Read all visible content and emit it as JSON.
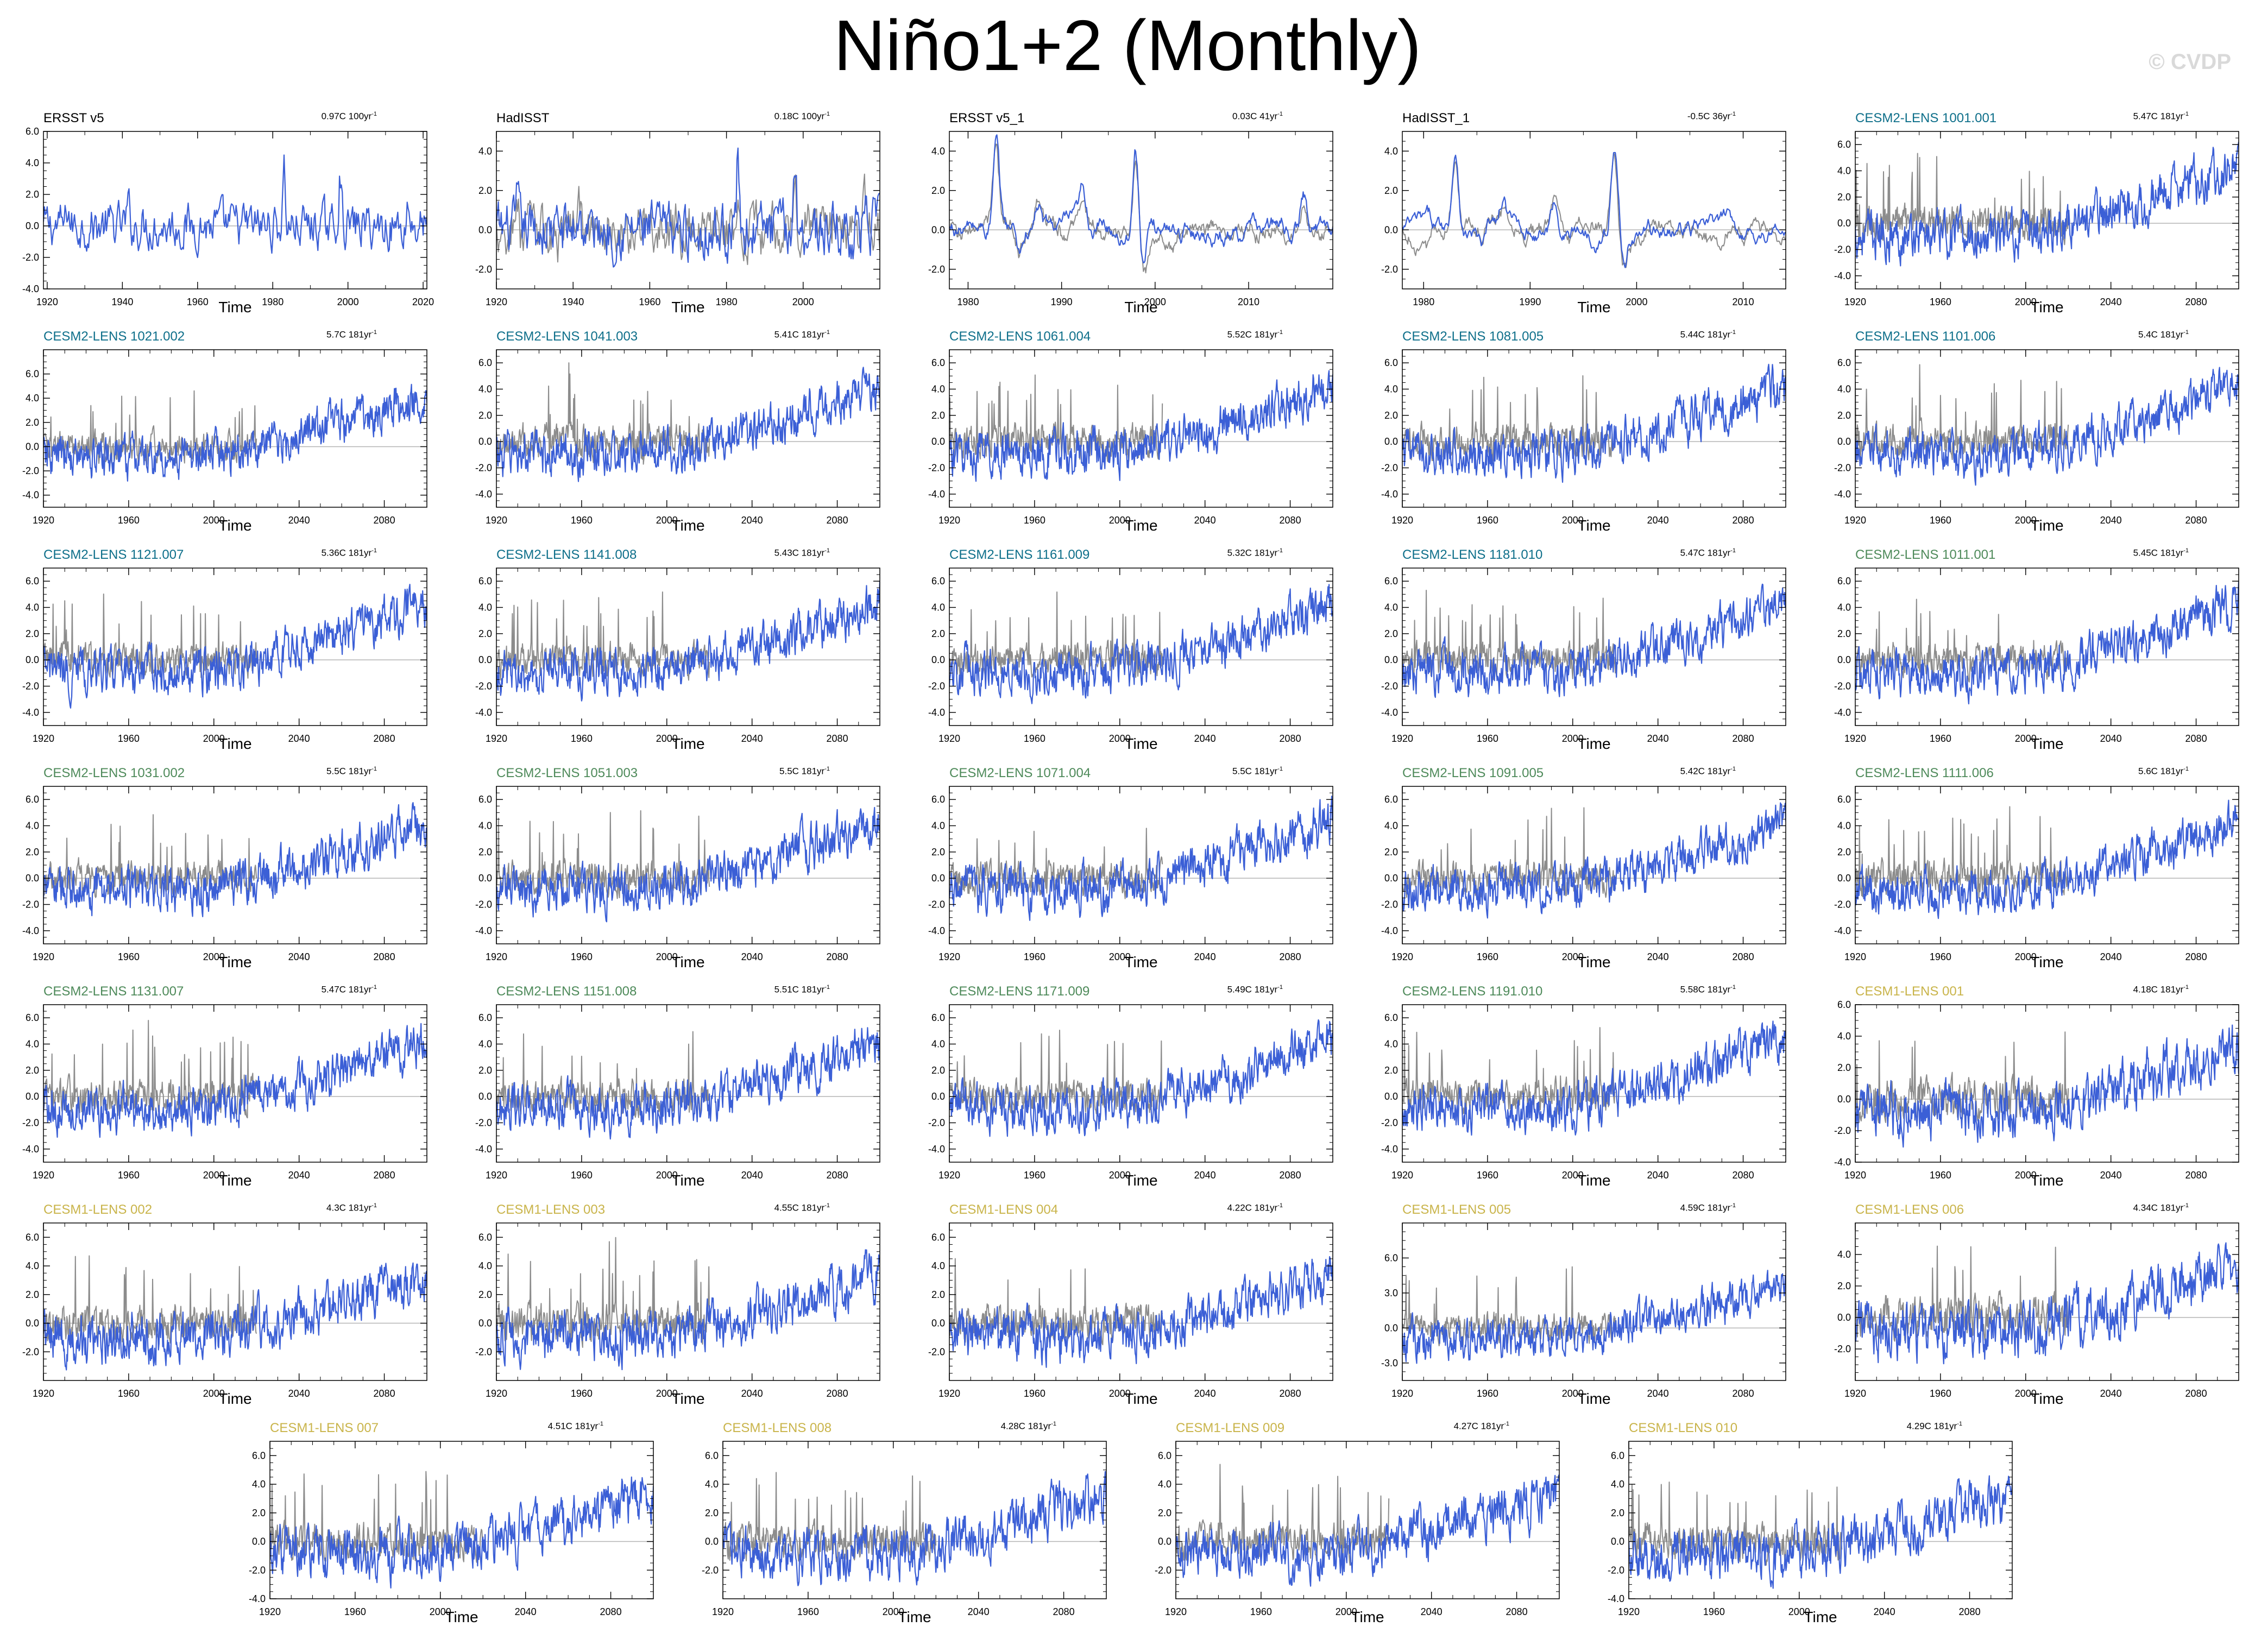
{
  "page": {
    "title": "Niño1+2 (Monthly)",
    "watermark": "© CVDP"
  },
  "colors": {
    "series": "#3b5fd6",
    "reference": "#8c8c8c",
    "zero_line": "#b4b4b4",
    "frame": "#000000",
    "name_obs": "#000000",
    "name_cesm2_a": "#0e6f8a",
    "name_cesm2_b": "#4e8a5a",
    "name_cesm1": "#c9b44a"
  },
  "x_axis_label": "Time",
  "panels": [
    {
      "name": "ERSST v5",
      "name_color": "#000000",
      "trend": "0.97C 100yr",
      "trend_exp": "-1",
      "xlim": [
        1919,
        2021
      ],
      "xticks": [
        1920,
        1940,
        1960,
        1980,
        2000,
        2020
      ],
      "ylim": [
        -4,
        6
      ],
      "yticks": [
        "6.0",
        "4.0",
        "2.0",
        "0.0",
        "-2.0",
        "-4.0"
      ],
      "kind": "obs_long",
      "has_reference": false
    },
    {
      "name": "HadISST",
      "name_color": "#000000",
      "trend": "0.18C 100yr",
      "trend_exp": "-1",
      "xlim": [
        1920,
        2020
      ],
      "xticks": [
        1920,
        1940,
        1960,
        1980,
        2000
      ],
      "ylim": [
        -3,
        5
      ],
      "yticks": [
        "4.0",
        "2.0",
        "0.0",
        "-2.0"
      ],
      "kind": "obs_long",
      "has_reference": true
    },
    {
      "name": "ERSST v5_1",
      "name_color": "#000000",
      "trend": "0.03C 41yr",
      "trend_exp": "-1",
      "xlim": [
        1978,
        2019
      ],
      "xticks": [
        1980,
        1990,
        2000,
        2010
      ],
      "ylim": [
        -3,
        5
      ],
      "yticks": [
        "4.0",
        "2.0",
        "0.0",
        "-2.0"
      ],
      "kind": "obs_short",
      "has_reference": true
    },
    {
      "name": "HadISST_1",
      "name_color": "#000000",
      "trend": "-0.5C 36yr",
      "trend_exp": "-1",
      "xlim": [
        1978,
        2014
      ],
      "xticks": [
        1980,
        1990,
        2000,
        2010
      ],
      "ylim": [
        -3,
        5
      ],
      "yticks": [
        "4.0",
        "2.0",
        "0.0",
        "-2.0"
      ],
      "kind": "obs_short",
      "has_reference": true
    },
    {
      "name": "CESM2-LENS 1001.001",
      "name_color": "#0e6f8a",
      "trend": "5.47C 181yr",
      "trend_exp": "-1",
      "xlim": [
        1920,
        2100
      ],
      "xticks": [
        1920,
        1960,
        2000,
        2040,
        2080
      ],
      "ylim": [
        -5,
        7
      ],
      "yticks": [
        "6.0",
        "4.0",
        "2.0",
        "0.0",
        "-2.0",
        "-4.0"
      ],
      "kind": "model",
      "has_reference": true,
      "end_level": 4.5
    },
    {
      "name": "CESM2-LENS 1021.002",
      "name_color": "#0e6f8a",
      "trend": "5.7C 181yr",
      "trend_exp": "-1",
      "xlim": [
        1920,
        2100
      ],
      "xticks": [
        1920,
        1960,
        2000,
        2040,
        2080
      ],
      "ylim": [
        -5,
        8
      ],
      "yticks": [
        "6.0",
        "4.0",
        "2.0",
        "0.0",
        "-2.0",
        "-4.0"
      ],
      "kind": "model",
      "has_reference": true,
      "end_level": 4.5
    },
    {
      "name": "CESM2-LENS 1041.003",
      "name_color": "#0e6f8a",
      "trend": "5.41C 181yr",
      "trend_exp": "-1",
      "xlim": [
        1920,
        2100
      ],
      "xticks": [
        1920,
        1960,
        2000,
        2040,
        2080
      ],
      "ylim": [
        -5,
        7
      ],
      "yticks": [
        "6.0",
        "4.0",
        "2.0",
        "0.0",
        "-2.0",
        "-4.0"
      ],
      "kind": "model",
      "has_reference": true,
      "end_level": 4.3
    },
    {
      "name": "CESM2-LENS 1061.004",
      "name_color": "#0e6f8a",
      "trend": "5.52C 181yr",
      "trend_exp": "-1",
      "xlim": [
        1920,
        2100
      ],
      "xticks": [
        1920,
        1960,
        2000,
        2040,
        2080
      ],
      "ylim": [
        -5,
        7
      ],
      "yticks": [
        "6.0",
        "4.0",
        "2.0",
        "0.0",
        "-2.0",
        "-4.0"
      ],
      "kind": "model",
      "has_reference": true,
      "end_level": 4.3
    },
    {
      "name": "CESM2-LENS 1081.005",
      "name_color": "#0e6f8a",
      "trend": "5.44C 181yr",
      "trend_exp": "-1",
      "xlim": [
        1920,
        2100
      ],
      "xticks": [
        1920,
        1960,
        2000,
        2040,
        2080
      ],
      "ylim": [
        -5,
        7
      ],
      "yticks": [
        "6.0",
        "4.0",
        "2.0",
        "0.0",
        "-2.0",
        "-4.0"
      ],
      "kind": "model",
      "has_reference": true,
      "end_level": 4.3
    },
    {
      "name": "CESM2-LENS 1101.006",
      "name_color": "#0e6f8a",
      "trend": "5.4C 181yr",
      "trend_exp": "-1",
      "xlim": [
        1920,
        2100
      ],
      "xticks": [
        1920,
        1960,
        2000,
        2040,
        2080
      ],
      "ylim": [
        -5,
        7
      ],
      "yticks": [
        "6.0",
        "4.0",
        "2.0",
        "0.0",
        "-2.0",
        "-4.0"
      ],
      "kind": "model",
      "has_reference": true,
      "end_level": 4.3
    },
    {
      "name": "CESM2-LENS 1121.007",
      "name_color": "#0e6f8a",
      "trend": "5.36C 181yr",
      "trend_exp": "-1",
      "xlim": [
        1920,
        2100
      ],
      "xticks": [
        1920,
        1960,
        2000,
        2040,
        2080
      ],
      "ylim": [
        -5,
        7
      ],
      "yticks": [
        "6.0",
        "4.0",
        "2.0",
        "0.0",
        "-2.0",
        "-4.0"
      ],
      "kind": "model",
      "has_reference": true,
      "end_level": 4.3
    },
    {
      "name": "CESM2-LENS 1141.008",
      "name_color": "#0e6f8a",
      "trend": "5.43C 181yr",
      "trend_exp": "-1",
      "xlim": [
        1920,
        2100
      ],
      "xticks": [
        1920,
        1960,
        2000,
        2040,
        2080
      ],
      "ylim": [
        -5,
        7
      ],
      "yticks": [
        "6.0",
        "4.0",
        "2.0",
        "0.0",
        "-2.0",
        "-4.0"
      ],
      "kind": "model",
      "has_reference": true,
      "end_level": 4.3
    },
    {
      "name": "CESM2-LENS 1161.009",
      "name_color": "#0e6f8a",
      "trend": "5.32C 181yr",
      "trend_exp": "-1",
      "xlim": [
        1920,
        2100
      ],
      "xticks": [
        1920,
        1960,
        2000,
        2040,
        2080
      ],
      "ylim": [
        -5,
        7
      ],
      "yticks": [
        "6.0",
        "4.0",
        "2.0",
        "0.0",
        "-2.0",
        "-4.0"
      ],
      "kind": "model",
      "has_reference": true,
      "end_level": 4.2
    },
    {
      "name": "CESM2-LENS 1181.010",
      "name_color": "#0e6f8a",
      "trend": "5.47C 181yr",
      "trend_exp": "-1",
      "xlim": [
        1920,
        2100
      ],
      "xticks": [
        1920,
        1960,
        2000,
        2040,
        2080
      ],
      "ylim": [
        -5,
        7
      ],
      "yticks": [
        "6.0",
        "4.0",
        "2.0",
        "0.0",
        "-2.0",
        "-4.0"
      ],
      "kind": "model",
      "has_reference": true,
      "end_level": 4.3
    },
    {
      "name": "CESM2-LENS 1011.001",
      "name_color": "#4e8a5a",
      "trend": "5.45C 181yr",
      "trend_exp": "-1",
      "xlim": [
        1920,
        2100
      ],
      "xticks": [
        1920,
        1960,
        2000,
        2040,
        2080
      ],
      "ylim": [
        -5,
        7
      ],
      "yticks": [
        "6.0",
        "4.0",
        "2.0",
        "0.0",
        "-2.0",
        "-4.0"
      ],
      "kind": "model",
      "has_reference": true,
      "end_level": 4.3
    },
    {
      "name": "CESM2-LENS 1031.002",
      "name_color": "#4e8a5a",
      "trend": "5.5C 181yr",
      "trend_exp": "-1",
      "xlim": [
        1920,
        2100
      ],
      "xticks": [
        1920,
        1960,
        2000,
        2040,
        2080
      ],
      "ylim": [
        -5,
        7
      ],
      "yticks": [
        "6.0",
        "4.0",
        "2.0",
        "0.0",
        "-2.0",
        "-4.0"
      ],
      "kind": "model",
      "has_reference": true,
      "end_level": 4.3
    },
    {
      "name": "CESM2-LENS 1051.003",
      "name_color": "#4e8a5a",
      "trend": "5.5C 181yr",
      "trend_exp": "-1",
      "xlim": [
        1920,
        2100
      ],
      "xticks": [
        1920,
        1960,
        2000,
        2040,
        2080
      ],
      "ylim": [
        -5,
        7
      ],
      "yticks": [
        "6.0",
        "4.0",
        "2.0",
        "0.0",
        "-2.0",
        "-4.0"
      ],
      "kind": "model",
      "has_reference": true,
      "end_level": 4.3
    },
    {
      "name": "CESM2-LENS 1071.004",
      "name_color": "#4e8a5a",
      "trend": "5.5C 181yr",
      "trend_exp": "-1",
      "xlim": [
        1920,
        2100
      ],
      "xticks": [
        1920,
        1960,
        2000,
        2040,
        2080
      ],
      "ylim": [
        -5,
        7
      ],
      "yticks": [
        "6.0",
        "4.0",
        "2.0",
        "0.0",
        "-2.0",
        "-4.0"
      ],
      "kind": "model",
      "has_reference": true,
      "end_level": 4.4
    },
    {
      "name": "CESM2-LENS 1091.005",
      "name_color": "#4e8a5a",
      "trend": "5.42C 181yr",
      "trend_exp": "-1",
      "xlim": [
        1920,
        2100
      ],
      "xticks": [
        1920,
        1960,
        2000,
        2040,
        2080
      ],
      "ylim": [
        -5,
        7
      ],
      "yticks": [
        "6.0",
        "4.0",
        "2.0",
        "0.0",
        "-2.0",
        "-4.0"
      ],
      "kind": "model",
      "has_reference": true,
      "end_level": 4.3
    },
    {
      "name": "CESM2-LENS 1111.006",
      "name_color": "#4e8a5a",
      "trend": "5.6C 181yr",
      "trend_exp": "-1",
      "xlim": [
        1920,
        2100
      ],
      "xticks": [
        1920,
        1960,
        2000,
        2040,
        2080
      ],
      "ylim": [
        -5,
        7
      ],
      "yticks": [
        "6.0",
        "4.0",
        "2.0",
        "0.0",
        "-2.0",
        "-4.0"
      ],
      "kind": "model",
      "has_reference": true,
      "end_level": 4.4
    },
    {
      "name": "CESM2-LENS 1131.007",
      "name_color": "#4e8a5a",
      "trend": "5.47C 181yr",
      "trend_exp": "-1",
      "xlim": [
        1920,
        2100
      ],
      "xticks": [
        1920,
        1960,
        2000,
        2040,
        2080
      ],
      "ylim": [
        -5,
        7
      ],
      "yticks": [
        "6.0",
        "4.0",
        "2.0",
        "0.0",
        "-2.0",
        "-4.0"
      ],
      "kind": "model",
      "has_reference": true,
      "end_level": 4.3
    },
    {
      "name": "CESM2-LENS 1151.008",
      "name_color": "#4e8a5a",
      "trend": "5.51C 181yr",
      "trend_exp": "-1",
      "xlim": [
        1920,
        2100
      ],
      "xticks": [
        1920,
        1960,
        2000,
        2040,
        2080
      ],
      "ylim": [
        -5,
        7
      ],
      "yticks": [
        "6.0",
        "4.0",
        "2.0",
        "0.0",
        "-2.0",
        "-4.0"
      ],
      "kind": "model",
      "has_reference": true,
      "end_level": 4.3
    },
    {
      "name": "CESM2-LENS 1171.009",
      "name_color": "#4e8a5a",
      "trend": "5.49C 181yr",
      "trend_exp": "-1",
      "xlim": [
        1920,
        2100
      ],
      "xticks": [
        1920,
        1960,
        2000,
        2040,
        2080
      ],
      "ylim": [
        -5,
        7
      ],
      "yticks": [
        "6.0",
        "4.0",
        "2.0",
        "0.0",
        "-2.0",
        "-4.0"
      ],
      "kind": "model",
      "has_reference": true,
      "end_level": 4.3
    },
    {
      "name": "CESM2-LENS 1191.010",
      "name_color": "#4e8a5a",
      "trend": "5.58C 181yr",
      "trend_exp": "-1",
      "xlim": [
        1920,
        2100
      ],
      "xticks": [
        1920,
        1960,
        2000,
        2040,
        2080
      ],
      "ylim": [
        -5,
        7
      ],
      "yticks": [
        "6.0",
        "4.0",
        "2.0",
        "0.0",
        "-2.0",
        "-4.0"
      ],
      "kind": "model",
      "has_reference": true,
      "end_level": 4.4
    },
    {
      "name": "CESM1-LENS 001",
      "name_color": "#c9b44a",
      "trend": "4.18C 181yr",
      "trend_exp": "-1",
      "xlim": [
        1920,
        2100
      ],
      "xticks": [
        1920,
        1960,
        2000,
        2040,
        2080
      ],
      "ylim": [
        -4,
        6
      ],
      "yticks": [
        "6.0",
        "4.0",
        "2.0",
        "0.0",
        "-2.0",
        "-4.0"
      ],
      "kind": "model",
      "has_reference": true,
      "end_level": 3.3
    },
    {
      "name": "CESM1-LENS 002",
      "name_color": "#c9b44a",
      "trend": "4.3C 181yr",
      "trend_exp": "-1",
      "xlim": [
        1920,
        2100
      ],
      "xticks": [
        1920,
        1960,
        2000,
        2040,
        2080
      ],
      "ylim": [
        -4,
        7
      ],
      "yticks": [
        "6.0",
        "4.0",
        "2.0",
        "0.0",
        "-2.0"
      ],
      "kind": "model",
      "has_reference": true,
      "end_level": 3.3
    },
    {
      "name": "CESM1-LENS 003",
      "name_color": "#c9b44a",
      "trend": "4.55C 181yr",
      "trend_exp": "-1",
      "xlim": [
        1920,
        2100
      ],
      "xticks": [
        1920,
        1960,
        2000,
        2040,
        2080
      ],
      "ylim": [
        -4,
        7
      ],
      "yticks": [
        "6.0",
        "4.0",
        "2.0",
        "0.0",
        "-2.0"
      ],
      "kind": "model",
      "has_reference": true,
      "end_level": 3.4
    },
    {
      "name": "CESM1-LENS 004",
      "name_color": "#c9b44a",
      "trend": "4.22C 181yr",
      "trend_exp": "-1",
      "xlim": [
        1920,
        2100
      ],
      "xticks": [
        1920,
        1960,
        2000,
        2040,
        2080
      ],
      "ylim": [
        -4,
        7
      ],
      "yticks": [
        "6.0",
        "4.0",
        "2.0",
        "0.0",
        "-2.0"
      ],
      "kind": "model",
      "has_reference": true,
      "end_level": 3.3
    },
    {
      "name": "CESM1-LENS 005",
      "name_color": "#c9b44a",
      "trend": "4.59C 181yr",
      "trend_exp": "-1",
      "xlim": [
        1920,
        2100
      ],
      "xticks": [
        1920,
        1960,
        2000,
        2040,
        2080
      ],
      "ylim": [
        -4.5,
        9
      ],
      "yticks": [
        "6.0",
        "3.0",
        "0.0",
        "-3.0"
      ],
      "kind": "model",
      "has_reference": true,
      "end_level": 3.6
    },
    {
      "name": "CESM1-LENS 006",
      "name_color": "#c9b44a",
      "trend": "4.34C 181yr",
      "trend_exp": "-1",
      "xlim": [
        1920,
        2100
      ],
      "xticks": [
        1920,
        1960,
        2000,
        2040,
        2080
      ],
      "ylim": [
        -4,
        6
      ],
      "yticks": [
        "4.0",
        "2.0",
        "0.0",
        "-2.0"
      ],
      "kind": "model",
      "has_reference": true,
      "end_level": 3.4
    },
    {
      "name": "CESM1-LENS 007",
      "name_color": "#c9b44a",
      "trend": "4.51C 181yr",
      "trend_exp": "-1",
      "xlim": [
        1920,
        2100
      ],
      "xticks": [
        1920,
        1960,
        2000,
        2040,
        2080
      ],
      "ylim": [
        -4,
        7
      ],
      "yticks": [
        "6.0",
        "4.0",
        "2.0",
        "0.0",
        "-2.0",
        "-4.0"
      ],
      "kind": "model",
      "has_reference": true,
      "end_level": 3.5
    },
    {
      "name": "CESM1-LENS 008",
      "name_color": "#c9b44a",
      "trend": "4.28C 181yr",
      "trend_exp": "-1",
      "xlim": [
        1920,
        2100
      ],
      "xticks": [
        1920,
        1960,
        2000,
        2040,
        2080
      ],
      "ylim": [
        -4,
        7
      ],
      "yticks": [
        "6.0",
        "4.0",
        "2.0",
        "0.0",
        "-2.0"
      ],
      "kind": "model",
      "has_reference": true,
      "end_level": 3.3
    },
    {
      "name": "CESM1-LENS 009",
      "name_color": "#c9b44a",
      "trend": "4.27C 181yr",
      "trend_exp": "-1",
      "xlim": [
        1920,
        2100
      ],
      "xticks": [
        1920,
        1960,
        2000,
        2040,
        2080
      ],
      "ylim": [
        -4,
        7
      ],
      "yticks": [
        "6.0",
        "4.0",
        "2.0",
        "0.0",
        "-2.0"
      ],
      "kind": "model",
      "has_reference": true,
      "end_level": 3.3
    },
    {
      "name": "CESM1-LENS 010",
      "name_color": "#c9b44a",
      "trend": "4.29C 181yr",
      "trend_exp": "-1",
      "xlim": [
        1920,
        2100
      ],
      "xticks": [
        1920,
        1960,
        2000,
        2040,
        2080
      ],
      "ylim": [
        -4,
        7
      ],
      "yticks": [
        "6.0",
        "4.0",
        "2.0",
        "0.0",
        "-2.0",
        "-4.0"
      ],
      "kind": "model",
      "has_reference": true,
      "end_level": 3.3
    }
  ],
  "chart_data": {
    "type": "line",
    "title": "Niño1+2 (Monthly)",
    "xlabel": "Time",
    "grid": false,
    "panel_count": 34,
    "series_note_colors": {
      "series": "#3b5fd6",
      "reference": "#8c8c8c"
    }
  }
}
